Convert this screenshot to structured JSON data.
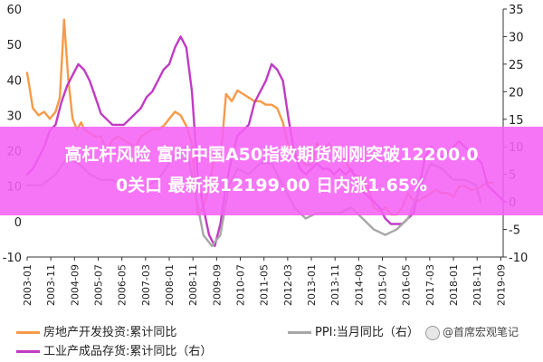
{
  "banner": {
    "line1": "高杠杆风险 富时中国A50指数期货刚刚突破12200.0",
    "line2": "0关口 最新报12199.00 日内涨1.65%"
  },
  "legend": {
    "item1": "房地产开发投资:累计同比",
    "item2": "工业产成品存货:累计同比（右）",
    "item3": "PPI:当月同比（右）",
    "watermark": "@首席宏观笔记"
  },
  "colors": {
    "orange": "#f79a49",
    "purple": "#c03bc4",
    "gray": "#a7a7a7"
  },
  "chart_data": {
    "type": "line",
    "x_tick_labels": [
      "2003-01",
      "2003-11",
      "2004-09",
      "2005-07",
      "2006-05",
      "2007-03",
      "2008-01",
      "2008-11",
      "2009-09",
      "2010-07",
      "2011-05",
      "2012-03",
      "2013-01",
      "2013-11",
      "2014-09",
      "2015-07",
      "2016-05",
      "2017-03",
      "2018-01",
      "2018-11",
      "2019-09"
    ],
    "y_left_ticks": [
      "-10",
      "0",
      "10",
      "20",
      "30",
      "40",
      "50",
      "60"
    ],
    "y_right_ticks": [
      "-10",
      "-5",
      "0",
      "5",
      "10",
      "15",
      "20",
      "25",
      "30",
      "35"
    ],
    "ylim_left": [
      -10,
      60
    ],
    "ylim_right": [
      -10,
      35
    ],
    "series": [
      {
        "axis": "left",
        "color_key": "orange",
        "x": [
          2003.0,
          2003.2,
          2003.4,
          2003.6,
          2003.8,
          2004.0,
          2004.15,
          2004.3,
          2004.45,
          2004.6,
          2004.75,
          2004.9,
          2005.0,
          2005.2,
          2005.4,
          2005.6,
          2005.8,
          2006.0,
          2006.2,
          2006.4,
          2006.6,
          2006.8,
          2007.0,
          2007.2,
          2007.4,
          2007.6,
          2007.8,
          2008.0,
          2008.2,
          2008.4,
          2008.6,
          2008.8,
          2009.0,
          2009.2,
          2009.4,
          2009.6,
          2009.8,
          2010.0,
          2010.2,
          2010.4,
          2010.6,
          2010.8,
          2011.0,
          2011.2,
          2011.4,
          2011.6,
          2011.8,
          2012.0,
          2012.2,
          2012.4,
          2012.6,
          2012.8,
          2013.0,
          2013.2,
          2013.4,
          2013.6,
          2013.8,
          2014.0,
          2014.2,
          2014.4,
          2014.6,
          2014.8,
          2015.0,
          2015.2,
          2015.4,
          2015.6,
          2015.8,
          2016.0,
          2016.2,
          2016.4,
          2016.6,
          2016.8,
          2017.0,
          2017.2,
          2017.4,
          2017.6,
          2017.8,
          2018.0,
          2018.2,
          2018.4,
          2018.6,
          2018.8,
          2019.0,
          2019.2,
          2019.4
        ],
        "y": [
          42,
          32,
          30,
          31,
          29,
          31,
          35,
          57,
          40,
          29,
          26,
          28,
          26,
          25,
          24,
          24,
          20,
          23,
          24,
          23,
          22,
          21,
          24,
          25,
          26,
          26,
          27,
          29,
          31,
          30,
          27,
          22,
          2,
          4,
          10,
          19,
          17,
          36,
          34,
          37,
          36,
          35,
          34,
          34,
          33,
          33,
          32,
          28,
          21,
          19,
          18,
          16,
          16,
          22,
          20,
          22,
          20,
          20,
          17,
          14,
          13,
          12,
          10,
          4,
          3,
          4,
          2,
          2,
          4,
          8,
          6,
          6,
          7,
          8,
          9,
          8,
          8,
          7,
          10,
          10,
          9,
          9,
          10,
          11,
          11
        ]
      },
      {
        "axis": "right",
        "color_key": "purple",
        "x": [
          2003.0,
          2003.2,
          2003.4,
          2003.6,
          2003.8,
          2004.0,
          2004.2,
          2004.4,
          2004.6,
          2004.8,
          2005.0,
          2005.2,
          2005.4,
          2005.6,
          2005.8,
          2006.0,
          2006.2,
          2006.4,
          2006.6,
          2006.8,
          2007.0,
          2007.2,
          2007.4,
          2007.6,
          2007.8,
          2008.0,
          2008.2,
          2008.4,
          2008.6,
          2008.8,
          2009.0,
          2009.2,
          2009.4,
          2009.6,
          2009.8,
          2010.0,
          2010.2,
          2010.4,
          2010.6,
          2010.8,
          2011.0,
          2011.2,
          2011.4,
          2011.6,
          2011.8,
          2012.0,
          2012.2,
          2012.4,
          2012.6,
          2012.8,
          2013.0,
          2013.2,
          2013.4,
          2013.6,
          2013.8,
          2014.0,
          2014.2,
          2014.4,
          2014.6,
          2014.8,
          2015.0,
          2015.2,
          2015.4,
          2015.6,
          2015.8,
          2016.0,
          2016.2,
          2016.4,
          2016.6,
          2016.8,
          2017.0,
          2017.2,
          2017.4,
          2017.6,
          2017.8,
          2018.0,
          2018.2,
          2018.4,
          2018.6,
          2018.8,
          2019.0,
          2019.2,
          2019.4,
          2019.6,
          2019.8
        ],
        "y": [
          5,
          6,
          8,
          10,
          13,
          14,
          18,
          21,
          23,
          25,
          24,
          22,
          19,
          16,
          15,
          14,
          14,
          14,
          15,
          16,
          17,
          19,
          20,
          22,
          24,
          25,
          28,
          30,
          28,
          20,
          5,
          -1,
          -6,
          -8,
          -4,
          3,
          8,
          12,
          13,
          14,
          18,
          20,
          22,
          25,
          24,
          22,
          15,
          9,
          6,
          5,
          6,
          7,
          6,
          6,
          5,
          6,
          5,
          6,
          4,
          2,
          1,
          0,
          -1,
          -3,
          -4,
          -4,
          -4,
          -3,
          -2,
          3,
          8,
          10,
          9,
          8,
          9,
          10,
          11,
          10,
          9,
          8,
          7,
          3,
          2,
          1,
          0
        ]
      },
      {
        "axis": "right",
        "color_key": "gray",
        "x": [
          2003.0,
          2003.5,
          2004.0,
          2004.4,
          2004.8,
          2005.2,
          2005.6,
          2006.0,
          2006.4,
          2006.8,
          2007.2,
          2007.6,
          2008.0,
          2008.3,
          2008.6,
          2008.9,
          2009.2,
          2009.5,
          2009.8,
          2010.1,
          2010.4,
          2010.8,
          2011.2,
          2011.6,
          2012.0,
          2012.4,
          2012.8,
          2013.2,
          2013.6,
          2014.0,
          2014.4,
          2014.8,
          2015.2,
          2015.6,
          2016.0,
          2016.4,
          2016.8,
          2017.2,
          2017.6,
          2018.0,
          2018.4,
          2018.8,
          2018.95
        ],
        "y": [
          3,
          3,
          5,
          8,
          7,
          5,
          4,
          4,
          3,
          3,
          3,
          4,
          7,
          9,
          10,
          2,
          -6,
          -8,
          -6,
          3,
          6,
          5,
          7,
          7,
          3,
          -1,
          -3,
          -2,
          -2,
          -2,
          -1,
          -3,
          -5,
          -6,
          -5,
          -3,
          2,
          7,
          6,
          4,
          4,
          3,
          0
        ]
      }
    ]
  }
}
